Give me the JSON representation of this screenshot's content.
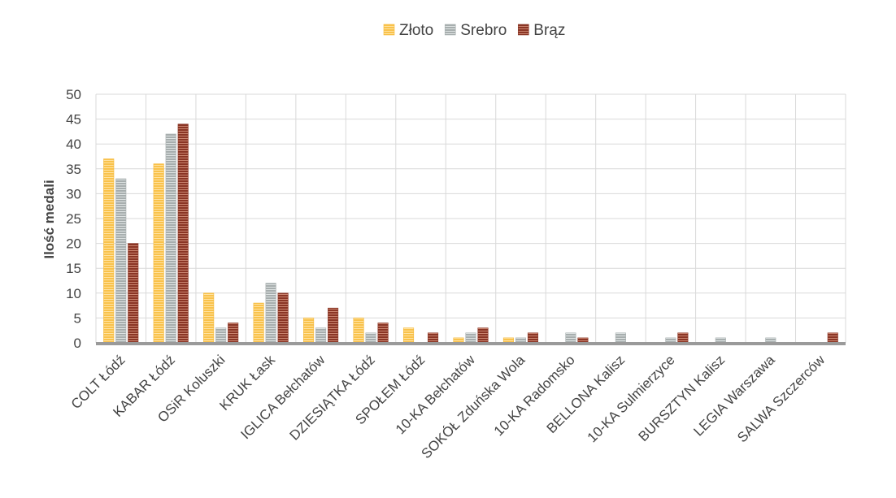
{
  "chart_data": {
    "type": "bar",
    "title": "",
    "xlabel": "",
    "ylabel": "Ilość medali",
    "ylim": [
      0,
      50
    ],
    "yticks": [
      0,
      5,
      10,
      15,
      20,
      25,
      30,
      35,
      40,
      45,
      50
    ],
    "grid": true,
    "legend_position": "top-center",
    "categories": [
      "COLT Łódź",
      "KABAR Łódź",
      "OSiR Koluszki",
      "KRUK Łask",
      "IGLICA Bełchatów",
      "DZIESIĄTKA Łódź",
      "SPOŁEM Łódź",
      "10-KA Bełchatów",
      "SOKÓŁ Zduńska Wola",
      "10-KA Radomsko",
      "BELLONA Kalisz",
      "10-KA Sulmierzyce",
      "BURSZTYN Kalisz",
      "LEGIA Warszawa",
      "SALWA Szczerców"
    ],
    "series": [
      {
        "name": "Złoto",
        "color": "#F5B93A",
        "values": [
          37,
          36,
          10,
          8,
          5,
          5,
          3,
          1,
          1,
          0,
          0,
          0,
          0,
          0,
          0
        ]
      },
      {
        "name": "Srebro",
        "color": "#A9B1B1",
        "values": [
          33,
          42,
          3,
          12,
          3,
          2,
          0,
          2,
          1,
          2,
          2,
          1,
          1,
          1,
          0
        ]
      },
      {
        "name": "Brąz",
        "color": "#8C3A2A",
        "values": [
          20,
          44,
          4,
          10,
          7,
          4,
          2,
          3,
          2,
          1,
          0,
          2,
          0,
          0,
          2
        ]
      }
    ]
  }
}
